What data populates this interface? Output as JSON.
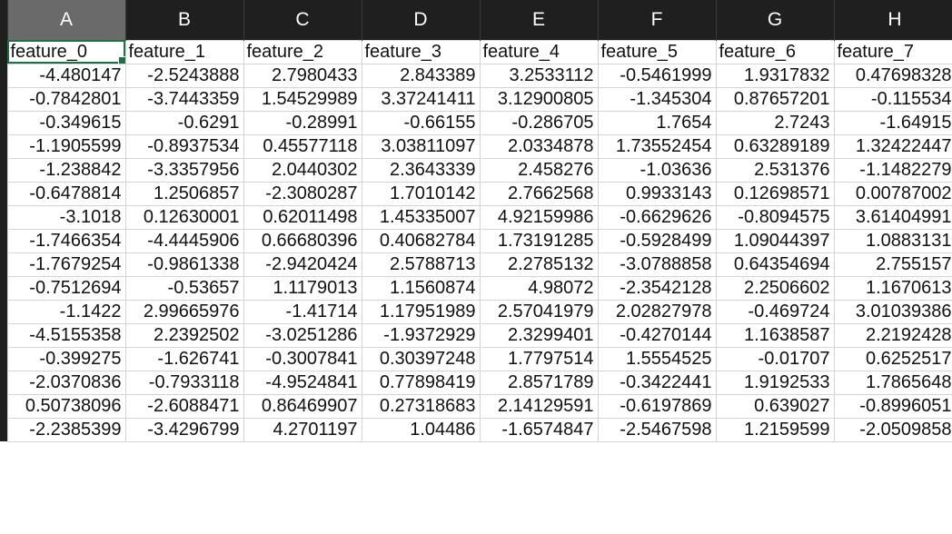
{
  "column_headers": [
    "A",
    "B",
    "C",
    "D",
    "E",
    "F",
    "G",
    "H"
  ],
  "selected_column": 0,
  "active_cell": {
    "row": 0,
    "col": 0
  },
  "colors": {
    "header_bg": "#1f1f1f",
    "selected_header_bg": "#6a6a6a",
    "active_cell_border": "#1e7145",
    "gridline": "#d4d4d4"
  },
  "rows": [
    [
      "feature_0",
      "feature_1",
      "feature_2",
      "feature_3",
      "feature_4",
      "feature_5",
      "feature_6",
      "feature_7"
    ],
    [
      "-4.480147",
      "-2.5243888",
      "2.7980433",
      "2.843389",
      "3.2533112",
      "-0.5461999",
      "1.9317832",
      "0.47698328"
    ],
    [
      "-0.7842801",
      "-3.7443359",
      "1.54529989",
      "3.37241411",
      "3.12900805",
      "-1.345304",
      "0.87657201",
      "-0.115534"
    ],
    [
      "-0.349615",
      "-0.6291",
      "-0.28991",
      "-0.66155",
      "-0.286705",
      "1.7654",
      "2.7243",
      "-1.64915"
    ],
    [
      "-1.1905599",
      "-0.8937534",
      "0.45577118",
      "3.03811097",
      "2.0334878",
      "1.73552454",
      "0.63289189",
      "1.32422447"
    ],
    [
      "-1.238842",
      "-3.3357956",
      "2.0440302",
      "2.3643339",
      "2.458276",
      "-1.03636",
      "2.531376",
      "-1.1482279"
    ],
    [
      "-0.6478814",
      "1.2506857",
      "-2.3080287",
      "1.7010142",
      "2.7662568",
      "0.9933143",
      "0.12698571",
      "0.00787002"
    ],
    [
      "-3.1018",
      "0.12630001",
      "0.62011498",
      "1.45335007",
      "4.92159986",
      "-0.6629626",
      "-0.8094575",
      "3.61404991"
    ],
    [
      "-1.7466354",
      "-4.4445906",
      "0.66680396",
      "0.40682784",
      "1.73191285",
      "-0.5928499",
      "1.09044397",
      "1.0883131"
    ],
    [
      "-1.7679254",
      "-0.9861338",
      "-2.9420424",
      "2.5788713",
      "2.2785132",
      "-3.0788858",
      "0.64354694",
      "2.755157"
    ],
    [
      "-0.7512694",
      "-0.53657",
      "1.1179013",
      "1.1560874",
      "4.98072",
      "-2.3542128",
      "2.2506602",
      "1.1670613"
    ],
    [
      "-1.1422",
      "2.99665976",
      "-1.41714",
      "1.17951989",
      "2.57041979",
      "2.02827978",
      "-0.469724",
      "3.01039386"
    ],
    [
      "-4.5155358",
      "2.2392502",
      "-3.0251286",
      "-1.9372929",
      "2.3299401",
      "-0.4270144",
      "1.1638587",
      "2.2192428"
    ],
    [
      "-0.399275",
      "-1.626741",
      "-0.3007841",
      "0.30397248",
      "1.7797514",
      "1.5554525",
      "-0.01707",
      "0.6252517"
    ],
    [
      "-2.0370836",
      "-0.7933118",
      "-4.9524841",
      "0.77898419",
      "2.8571789",
      "-0.3422441",
      "1.9192533",
      "1.7865648"
    ],
    [
      "0.50738096",
      "-2.6088471",
      "0.86469907",
      "0.27318683",
      "2.14129591",
      "-0.6197869",
      "0.639027",
      "-0.8996051"
    ],
    [
      "-2.2385399",
      "-3.4296799",
      "4.2701197",
      "1.04486",
      "-1.6574847",
      "-2.5467598",
      "1.2159599",
      "-2.0509858"
    ]
  ]
}
